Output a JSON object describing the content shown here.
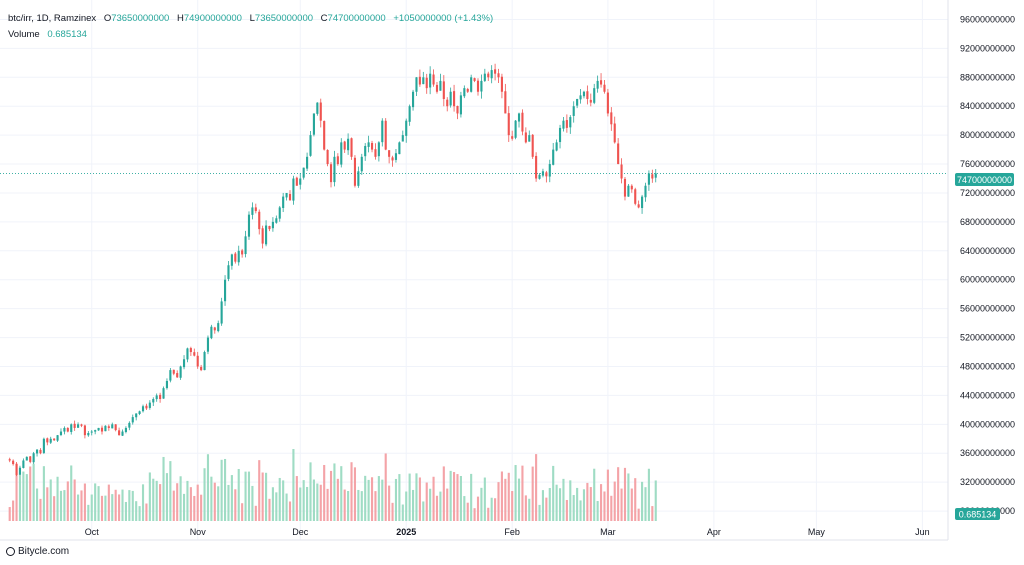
{
  "legend": {
    "symbol": "btc/irr, 1D, Ramzinex",
    "open_label": "O",
    "open_value": "73650000000",
    "high_label": "H",
    "high_value": "74900000000",
    "low_label": "L",
    "low_value": "73650000000",
    "close_label": "C",
    "close_value": "74700000000",
    "change": "+1050000000 (+1.43%)",
    "volume_label": "Volume",
    "volume_value": "0.685134"
  },
  "footer": {
    "brand": "Bitycle.com",
    "icon": "bitycle-logo-icon"
  },
  "colors": {
    "up": "#26a69a",
    "down": "#ef5350",
    "up_volume": "#9fdcc4",
    "down_volume": "#f4a3a7",
    "grid": "#f0f3fa",
    "axis_text": "#131722"
  },
  "chart_data": {
    "type": "candlestick",
    "symbol": "btc/irr",
    "interval": "1D",
    "exchange": "Ramzinex",
    "ylim": [
      24000000000,
      98000000000
    ],
    "y_ticks": [
      "96000000000",
      "92000000000",
      "88000000000",
      "84000000000",
      "80000000000",
      "76000000000",
      "72000000000",
      "68000000000",
      "64000000000",
      "60000000000",
      "56000000000",
      "52000000000",
      "48000000000",
      "44000000000",
      "40000000000",
      "36000000000",
      "32000000000",
      "28000000000"
    ],
    "x_ticks": [
      {
        "label": "Oct",
        "index": 24
      },
      {
        "label": "Nov",
        "index": 55
      },
      {
        "label": "Dec",
        "index": 85
      },
      {
        "label": "2025",
        "index": 116
      },
      {
        "label": "Feb",
        "index": 147
      },
      {
        "label": "Mar",
        "index": 175
      },
      {
        "label": "Apr",
        "index": 206
      },
      {
        "label": "May",
        "index": 236
      },
      {
        "label": "Jun",
        "index": 267
      }
    ],
    "total_slots": 275,
    "close_series": [
      35000000000,
      34500000000,
      33000000000,
      34000000000,
      35000000000,
      35500000000,
      34800000000,
      36000000000,
      36500000000,
      36000000000,
      38000000000,
      37500000000,
      38000000000,
      37800000000,
      38500000000,
      39000000000,
      39500000000,
      39000000000,
      40000000000,
      39500000000,
      40000000000,
      39800000000,
      38500000000,
      38800000000,
      39000000000,
      39200000000,
      39500000000,
      39000000000,
      39800000000,
      39500000000,
      40000000000,
      39200000000,
      38500000000,
      39000000000,
      39500000000,
      40200000000,
      41000000000,
      41500000000,
      41800000000,
      42500000000,
      42200000000,
      43000000000,
      43500000000,
      44000000000,
      43500000000,
      45000000000,
      46000000000,
      47500000000,
      47000000000,
      46500000000,
      48000000000,
      49000000000,
      50500000000,
      50000000000,
      49500000000,
      48000000000,
      47500000000,
      50000000000,
      52000000000,
      53500000000,
      53000000000,
      54000000000,
      57000000000,
      60000000000,
      62000000000,
      63500000000,
      62500000000,
      64000000000,
      63500000000,
      66000000000,
      69000000000,
      70000000000,
      69500000000,
      67000000000,
      65000000000,
      67500000000,
      67000000000,
      68000000000,
      68500000000,
      70000000000,
      71500000000,
      72000000000,
      71000000000,
      74000000000,
      73000000000,
      74000000000,
      75500000000,
      77000000000,
      80000000000,
      83000000000,
      84500000000,
      82000000000,
      78000000000,
      76000000000,
      73500000000,
      77000000000,
      76000000000,
      79000000000,
      78000000000,
      79500000000,
      77000000000,
      73000000000,
      75000000000,
      77000000000,
      78500000000,
      79000000000,
      78000000000,
      77000000000,
      79000000000,
      82000000000,
      78000000000,
      77000000000,
      76500000000,
      77500000000,
      79000000000,
      80000000000,
      82000000000,
      84000000000,
      86000000000,
      88000000000,
      87000000000,
      88000000000,
      86500000000,
      88500000000,
      87000000000,
      86000000000,
      87500000000,
      85000000000,
      84000000000,
      86000000000,
      84000000000,
      83000000000,
      85500000000,
      86500000000,
      86000000000,
      88000000000,
      87500000000,
      86000000000,
      87500000000,
      88500000000,
      88000000000,
      89000000000,
      88500000000,
      88000000000,
      86000000000,
      83000000000,
      80000000000,
      79500000000,
      82000000000,
      83000000000,
      80500000000,
      79000000000,
      80000000000,
      77000000000,
      74000000000,
      74500000000,
      75000000000,
      74300000000,
      76000000000,
      78000000000,
      79000000000,
      81000000000,
      82000000000,
      81000000000,
      82500000000,
      84000000000,
      85000000000,
      85500000000,
      86000000000,
      85000000000,
      84500000000,
      86500000000,
      87500000000,
      87000000000,
      86000000000,
      83000000000,
      81500000000,
      79000000000,
      76000000000,
      74000000000,
      71500000000,
      73000000000,
      72500000000,
      70500000000,
      70000000000,
      71500000000,
      73000000000,
      74700000000,
      74000000000,
      74700000000
    ],
    "volume_unit": "BTC",
    "last_volume": "0.685134"
  }
}
